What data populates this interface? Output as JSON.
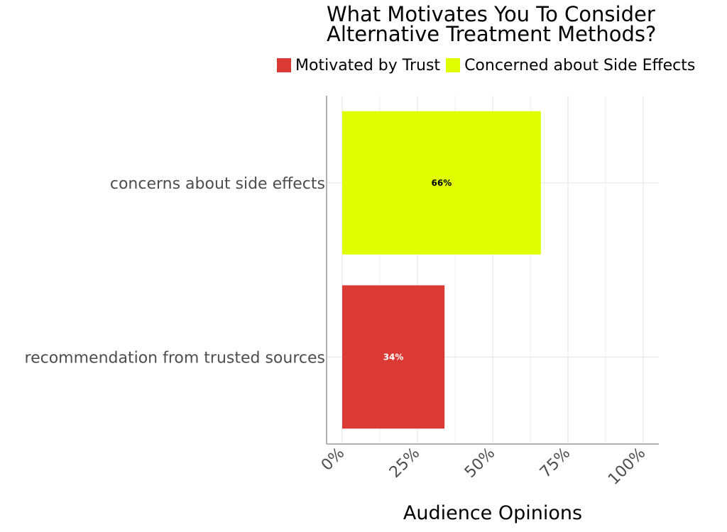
{
  "chart_data": {
    "type": "bar",
    "orientation": "horizontal",
    "title": [
      "What Motivates You To Consider",
      "Alternative Treatment Methods?"
    ],
    "xlabel": "Audience Opinions",
    "ylabel": "",
    "categories": [
      "concerns about side effects",
      "recommendation from trusted sources"
    ],
    "series": [
      {
        "name": "Motivated by Trust",
        "color": "#db3a34",
        "values": [
          null,
          34
        ]
      },
      {
        "name": "Concerned about Side Effects",
        "color": "#dfff00",
        "values": [
          66,
          null
        ]
      }
    ],
    "data_labels": [
      "66%",
      "34%"
    ],
    "data_label_colors": [
      "#000000",
      "#ffffff"
    ],
    "xlim": [
      0,
      100
    ],
    "x_ticks": [
      0,
      25,
      50,
      75,
      100
    ],
    "x_tick_labels": [
      "0%",
      "25%",
      "50%",
      "75%",
      "100%"
    ],
    "grid": true,
    "legend_position": "top"
  }
}
